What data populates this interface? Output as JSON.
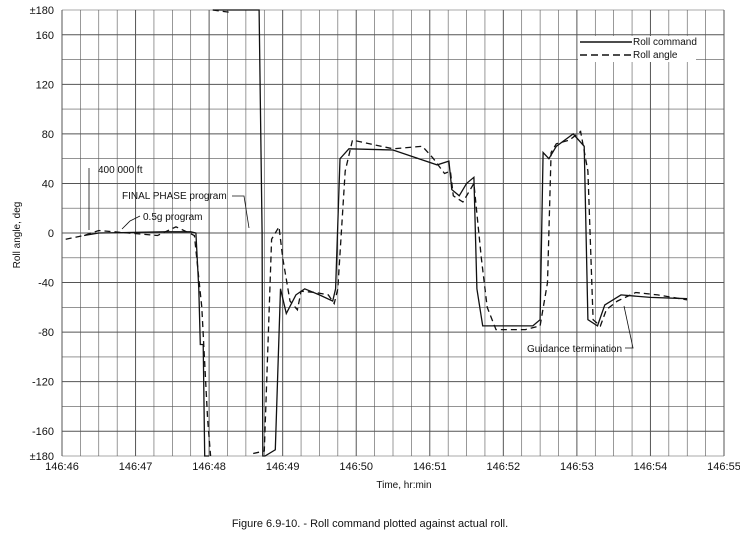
{
  "chart_data": {
    "type": "line",
    "title": "",
    "xlabel": "Time, hr:min",
    "ylabel": "Roll angle, deg",
    "caption": "Figure 6.9-10. - Roll command plotted against actual roll.",
    "x_ticks_minutes": [
      0,
      1,
      2,
      3,
      4,
      5,
      6,
      7,
      8,
      9
    ],
    "x_tick_labels": [
      "146:46",
      "146:47",
      "146:48",
      "146:49",
      "146:50",
      "146:51",
      "146:52",
      "146:53",
      "146:54",
      "146:55"
    ],
    "y_ticks": [
      180,
      160,
      120,
      80,
      40,
      0,
      -40,
      -80,
      -120,
      -160,
      -180
    ],
    "y_tick_labels": [
      "±180",
      "160",
      "120",
      "80",
      "40",
      "0",
      "-40",
      "-80",
      "-120",
      "-160",
      "±180"
    ],
    "xlim_minutes": [
      0,
      9
    ],
    "ylim": [
      -180,
      180
    ],
    "grid": true,
    "legend_position": "top-right",
    "series": [
      {
        "name": "Roll command",
        "style": "solid",
        "points": [
          [
            0.3,
            -2
          ],
          [
            0.5,
            0
          ],
          [
            1.4,
            1
          ],
          [
            1.75,
            1
          ],
          [
            1.82,
            0
          ],
          [
            1.86,
            -45
          ],
          [
            1.88,
            -90
          ],
          [
            1.92,
            -90
          ],
          [
            1.94,
            -180
          ],
          [
            2.0,
            -180
          ],
          [
            2.05,
            180
          ],
          [
            2.18,
            180
          ],
          [
            2.28,
            180
          ],
          [
            2.32,
            180
          ],
          [
            2.68,
            180
          ],
          [
            2.72,
            0
          ],
          [
            2.73,
            -180
          ],
          [
            2.76,
            -180
          ],
          [
            2.9,
            -175
          ],
          [
            2.97,
            -45
          ],
          [
            3.05,
            -65
          ],
          [
            3.18,
            -50
          ],
          [
            3.3,
            -45
          ],
          [
            3.5,
            -50
          ],
          [
            3.68,
            -55
          ],
          [
            3.72,
            -45
          ],
          [
            3.78,
            60
          ],
          [
            3.9,
            68
          ],
          [
            4.5,
            67
          ],
          [
            5.1,
            55
          ],
          [
            5.26,
            58
          ],
          [
            5.3,
            35
          ],
          [
            5.4,
            30
          ],
          [
            5.5,
            40
          ],
          [
            5.6,
            45
          ],
          [
            5.64,
            -45
          ],
          [
            5.72,
            -75
          ],
          [
            6.4,
            -75
          ],
          [
            6.5,
            -70
          ],
          [
            6.54,
            65
          ],
          [
            6.62,
            60
          ],
          [
            6.72,
            70
          ],
          [
            6.95,
            80
          ],
          [
            7.1,
            70
          ],
          [
            7.15,
            -70
          ],
          [
            7.28,
            -75
          ],
          [
            7.38,
            -58
          ],
          [
            7.6,
            -50
          ],
          [
            8.0,
            -52
          ],
          [
            8.5,
            -53
          ]
        ]
      },
      {
        "name": "Roll angle",
        "style": "dashed",
        "points": [
          [
            0.05,
            -5
          ],
          [
            0.3,
            -2
          ],
          [
            0.5,
            2
          ],
          [
            0.9,
            0
          ],
          [
            1.3,
            -2
          ],
          [
            1.55,
            5
          ],
          [
            1.8,
            -2
          ],
          [
            1.9,
            -60
          ],
          [
            1.98,
            -150
          ],
          [
            2.02,
            -180
          ],
          [
            2.05,
            180
          ],
          [
            2.3,
            178
          ],
          [
            2.6,
            -178
          ],
          [
            2.75,
            -176
          ],
          [
            2.85,
            -5
          ],
          [
            2.95,
            5
          ],
          [
            3.0,
            -20
          ],
          [
            3.1,
            -55
          ],
          [
            3.2,
            -62
          ],
          [
            3.25,
            -47
          ],
          [
            3.45,
            -48
          ],
          [
            3.62,
            -50
          ],
          [
            3.7,
            -57
          ],
          [
            3.75,
            -45
          ],
          [
            3.85,
            50
          ],
          [
            3.95,
            75
          ],
          [
            4.5,
            68
          ],
          [
            4.9,
            70
          ],
          [
            5.05,
            60
          ],
          [
            5.2,
            48
          ],
          [
            5.28,
            50
          ],
          [
            5.32,
            30
          ],
          [
            5.45,
            25
          ],
          [
            5.6,
            40
          ],
          [
            5.7,
            -20
          ],
          [
            5.78,
            -60
          ],
          [
            5.9,
            -78
          ],
          [
            6.3,
            -78
          ],
          [
            6.5,
            -75
          ],
          [
            6.6,
            -40
          ],
          [
            6.65,
            65
          ],
          [
            6.72,
            72
          ],
          [
            6.9,
            75
          ],
          [
            7.05,
            82
          ],
          [
            7.15,
            50
          ],
          [
            7.22,
            -70
          ],
          [
            7.32,
            -75
          ],
          [
            7.4,
            -62
          ],
          [
            7.55,
            -55
          ],
          [
            7.8,
            -48
          ],
          [
            8.1,
            -50
          ],
          [
            8.5,
            -54
          ]
        ]
      }
    ],
    "annotations": [
      "400 000 ft",
      "FINAL PHASE program",
      "0.5g program",
      "Guidance termination"
    ]
  }
}
